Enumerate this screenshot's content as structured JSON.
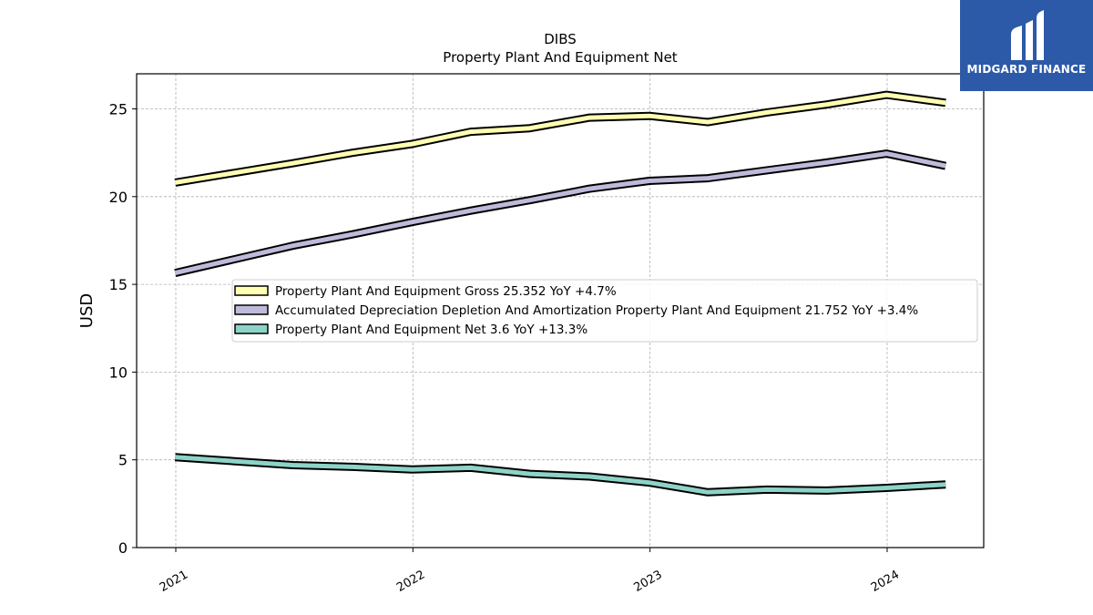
{
  "chart_data": {
    "type": "line",
    "title": "DIBS",
    "subtitle": "Property Plant And Equipment Net",
    "ylabel": "USD",
    "xlabel": "",
    "ylim": [
      0,
      27
    ],
    "yticks": [
      0,
      5,
      10,
      15,
      20,
      25
    ],
    "xticks": [
      "2021",
      "2022",
      "2023",
      "2024"
    ],
    "grid": true,
    "legend_position": "center",
    "x": [
      "2020-12-31",
      "2021-06-30",
      "2021-09-30",
      "2021-12-31",
      "2022-03-31",
      "2022-06-30",
      "2022-09-30",
      "2022-12-31",
      "2023-03-31",
      "2023-06-30",
      "2023-09-30",
      "2023-12-31",
      "2024-03-31"
    ],
    "series": [
      {
        "name": "Property Plant And Equipment Gross",
        "legend_label": "Property Plant And Equipment Gross  25.352 YoY +4.7%",
        "color": "#ffffb3",
        "values": [
          20.8,
          21.9,
          22.5,
          23.0,
          23.7,
          23.9,
          24.5,
          24.6,
          24.25,
          24.8,
          25.25,
          25.8,
          25.35
        ]
      },
      {
        "name": "Accumulated Depreciation Depletion And Amortization Property Plant And Equipment",
        "legend_label": "Accumulated Depreciation Depletion And Amortization Property Plant And Equipment  21.752 YoY +3.4%",
        "color": "#bebada",
        "values": [
          15.65,
          17.2,
          17.85,
          18.55,
          19.2,
          19.8,
          20.45,
          20.9,
          21.05,
          21.5,
          21.95,
          22.45,
          21.75
        ]
      },
      {
        "name": "Property Plant And Equipment Net",
        "legend_label": "Property Plant And Equipment Net  3.6 YoY +13.3%",
        "color": "#8dd3c7",
        "values": [
          5.15,
          4.7,
          4.6,
          4.45,
          4.55,
          4.2,
          4.05,
          3.7,
          3.15,
          3.3,
          3.25,
          3.4,
          3.6
        ]
      }
    ]
  },
  "logo": {
    "text": "MIDGARD FINANCE",
    "background": "#2c5aa8",
    "icon": "midgard-logo-icon"
  }
}
